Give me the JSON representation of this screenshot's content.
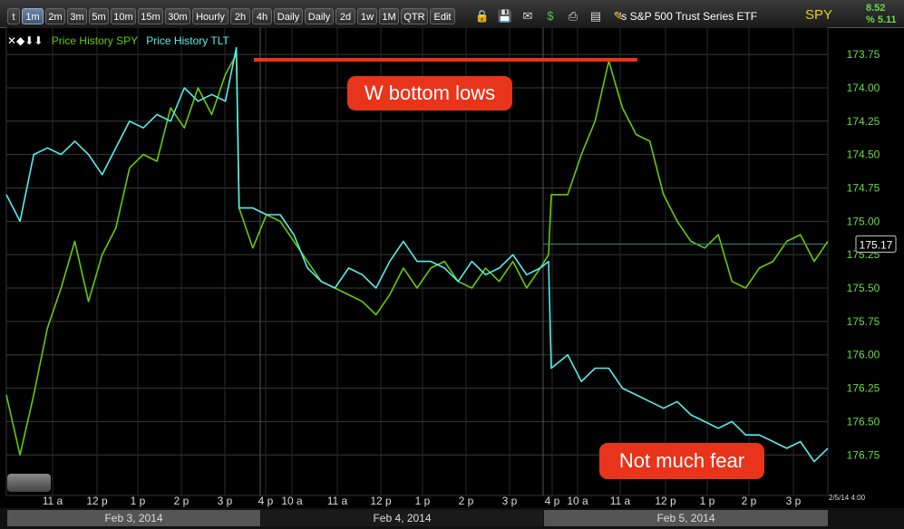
{
  "toolbar": {
    "buttons": [
      "t",
      "1m",
      "2m",
      "3m",
      "5m",
      "10m",
      "15m",
      "30m",
      "Hourly",
      "2h",
      "4h",
      "Daily",
      "Daily",
      "2d",
      "1w",
      "1M",
      "QTR",
      "Edit"
    ],
    "active_index": 1,
    "icons": [
      "lock-icon",
      "save-icon",
      "mail-icon",
      "dollar-icon",
      "print-icon",
      "card-icon",
      "pencil-icon"
    ],
    "title": "'s S&P 500 Trust Series ETF",
    "symbol": "SPY",
    "change_1": "8.52",
    "change_2": "% 5.11"
  },
  "legend": {
    "controls": "✕◆⬇⬇",
    "spy_label": "Price History SPY",
    "tlt_label": "Price History TLT"
  },
  "annotations": {
    "top": "W bottom lows",
    "bottom": "Not much fear"
  },
  "timestamp": "2/5/14 4:00",
  "colors": {
    "spy": "#66cc00",
    "tlt": "#55eeee",
    "annotation": "#e8341b",
    "axis_text": "#66dd44"
  },
  "chart_data": {
    "type": "line",
    "y_axis": {
      "inverted": true,
      "ylim": [
        173.6,
        176.85
      ],
      "ticks": [
        173.75,
        174.0,
        174.25,
        174.5,
        174.75,
        175.0,
        175.25,
        175.5,
        175.75,
        176.0,
        176.25,
        176.5,
        176.75
      ],
      "tick_labels": [
        "173.75",
        "174.00",
        "174.25",
        "174.50",
        "174.75",
        "175.00",
        "175.25",
        "175.50",
        "175.75",
        "176.00",
        "176.25",
        "176.50",
        "176.75"
      ],
      "current_value": "175.17"
    },
    "x_axis": {
      "tick_labels": [
        "11 a",
        "12 p",
        "1 p",
        "2 p",
        "3 p",
        "4 p",
        "10 a",
        "11 a",
        "12 p",
        "1 p",
        "2 p",
        "3 p",
        "4 p",
        "10 a",
        "11 a",
        "12 p",
        "1 p",
        "2 p",
        "3 p"
      ],
      "date_labels": [
        "Feb 3, 2014",
        "Feb 4, 2014",
        "Feb 5, 2014"
      ]
    },
    "series": [
      {
        "name": "Price History SPY",
        "x": [
          0,
          5,
          10,
          15,
          20,
          25,
          30,
          35,
          40,
          45,
          50,
          55,
          60,
          65,
          70,
          75,
          80,
          84,
          85,
          90,
          95,
          100,
          105,
          110,
          115,
          120,
          125,
          130,
          135,
          140,
          145,
          150,
          155,
          160,
          165,
          170,
          175,
          180,
          185,
          190,
          195,
          198,
          199,
          205,
          210,
          215,
          220,
          225,
          230,
          235,
          240,
          245,
          250,
          255,
          260,
          265,
          270,
          275,
          280,
          285,
          290,
          295,
          300
        ],
        "values": [
          176.3,
          176.75,
          176.3,
          175.8,
          175.5,
          175.15,
          175.6,
          175.25,
          175.05,
          174.6,
          174.5,
          174.55,
          174.15,
          174.3,
          174.0,
          174.2,
          173.9,
          173.75,
          174.9,
          175.2,
          174.95,
          175.0,
          175.15,
          175.3,
          175.45,
          175.5,
          175.55,
          175.6,
          175.7,
          175.55,
          175.35,
          175.5,
          175.35,
          175.3,
          175.45,
          175.5,
          175.35,
          175.45,
          175.3,
          175.5,
          175.35,
          175.25,
          174.8,
          174.8,
          174.5,
          174.25,
          173.8,
          174.15,
          174.35,
          174.4,
          174.8,
          175.0,
          175.15,
          175.2,
          175.1,
          175.45,
          175.5,
          175.35,
          175.3,
          175.15,
          175.1,
          175.3,
          175.15
        ]
      },
      {
        "name": "Price History TLT",
        "x": [
          0,
          5,
          10,
          15,
          20,
          25,
          30,
          35,
          40,
          45,
          50,
          55,
          60,
          65,
          70,
          75,
          80,
          84,
          85,
          90,
          95,
          100,
          105,
          110,
          115,
          120,
          125,
          130,
          135,
          140,
          145,
          150,
          155,
          160,
          165,
          170,
          175,
          180,
          185,
          190,
          195,
          198,
          199,
          205,
          210,
          215,
          220,
          225,
          230,
          235,
          240,
          245,
          250,
          255,
          260,
          265,
          270,
          275,
          280,
          285,
          290,
          295,
          300
        ],
        "values": [
          174.8,
          175.0,
          174.5,
          174.45,
          174.5,
          174.4,
          174.5,
          174.65,
          174.45,
          174.25,
          174.3,
          174.2,
          174.25,
          174.0,
          174.1,
          174.05,
          174.1,
          173.7,
          174.9,
          174.9,
          174.95,
          174.95,
          175.1,
          175.35,
          175.45,
          175.5,
          175.35,
          175.4,
          175.5,
          175.3,
          175.15,
          175.3,
          175.3,
          175.35,
          175.45,
          175.3,
          175.4,
          175.35,
          175.25,
          175.4,
          175.35,
          175.3,
          176.1,
          176.0,
          176.2,
          176.1,
          176.1,
          176.25,
          176.3,
          176.35,
          176.4,
          176.35,
          176.45,
          176.5,
          176.55,
          176.5,
          176.6,
          176.6,
          176.65,
          176.7,
          176.65,
          176.8,
          176.7
        ]
      }
    ]
  }
}
